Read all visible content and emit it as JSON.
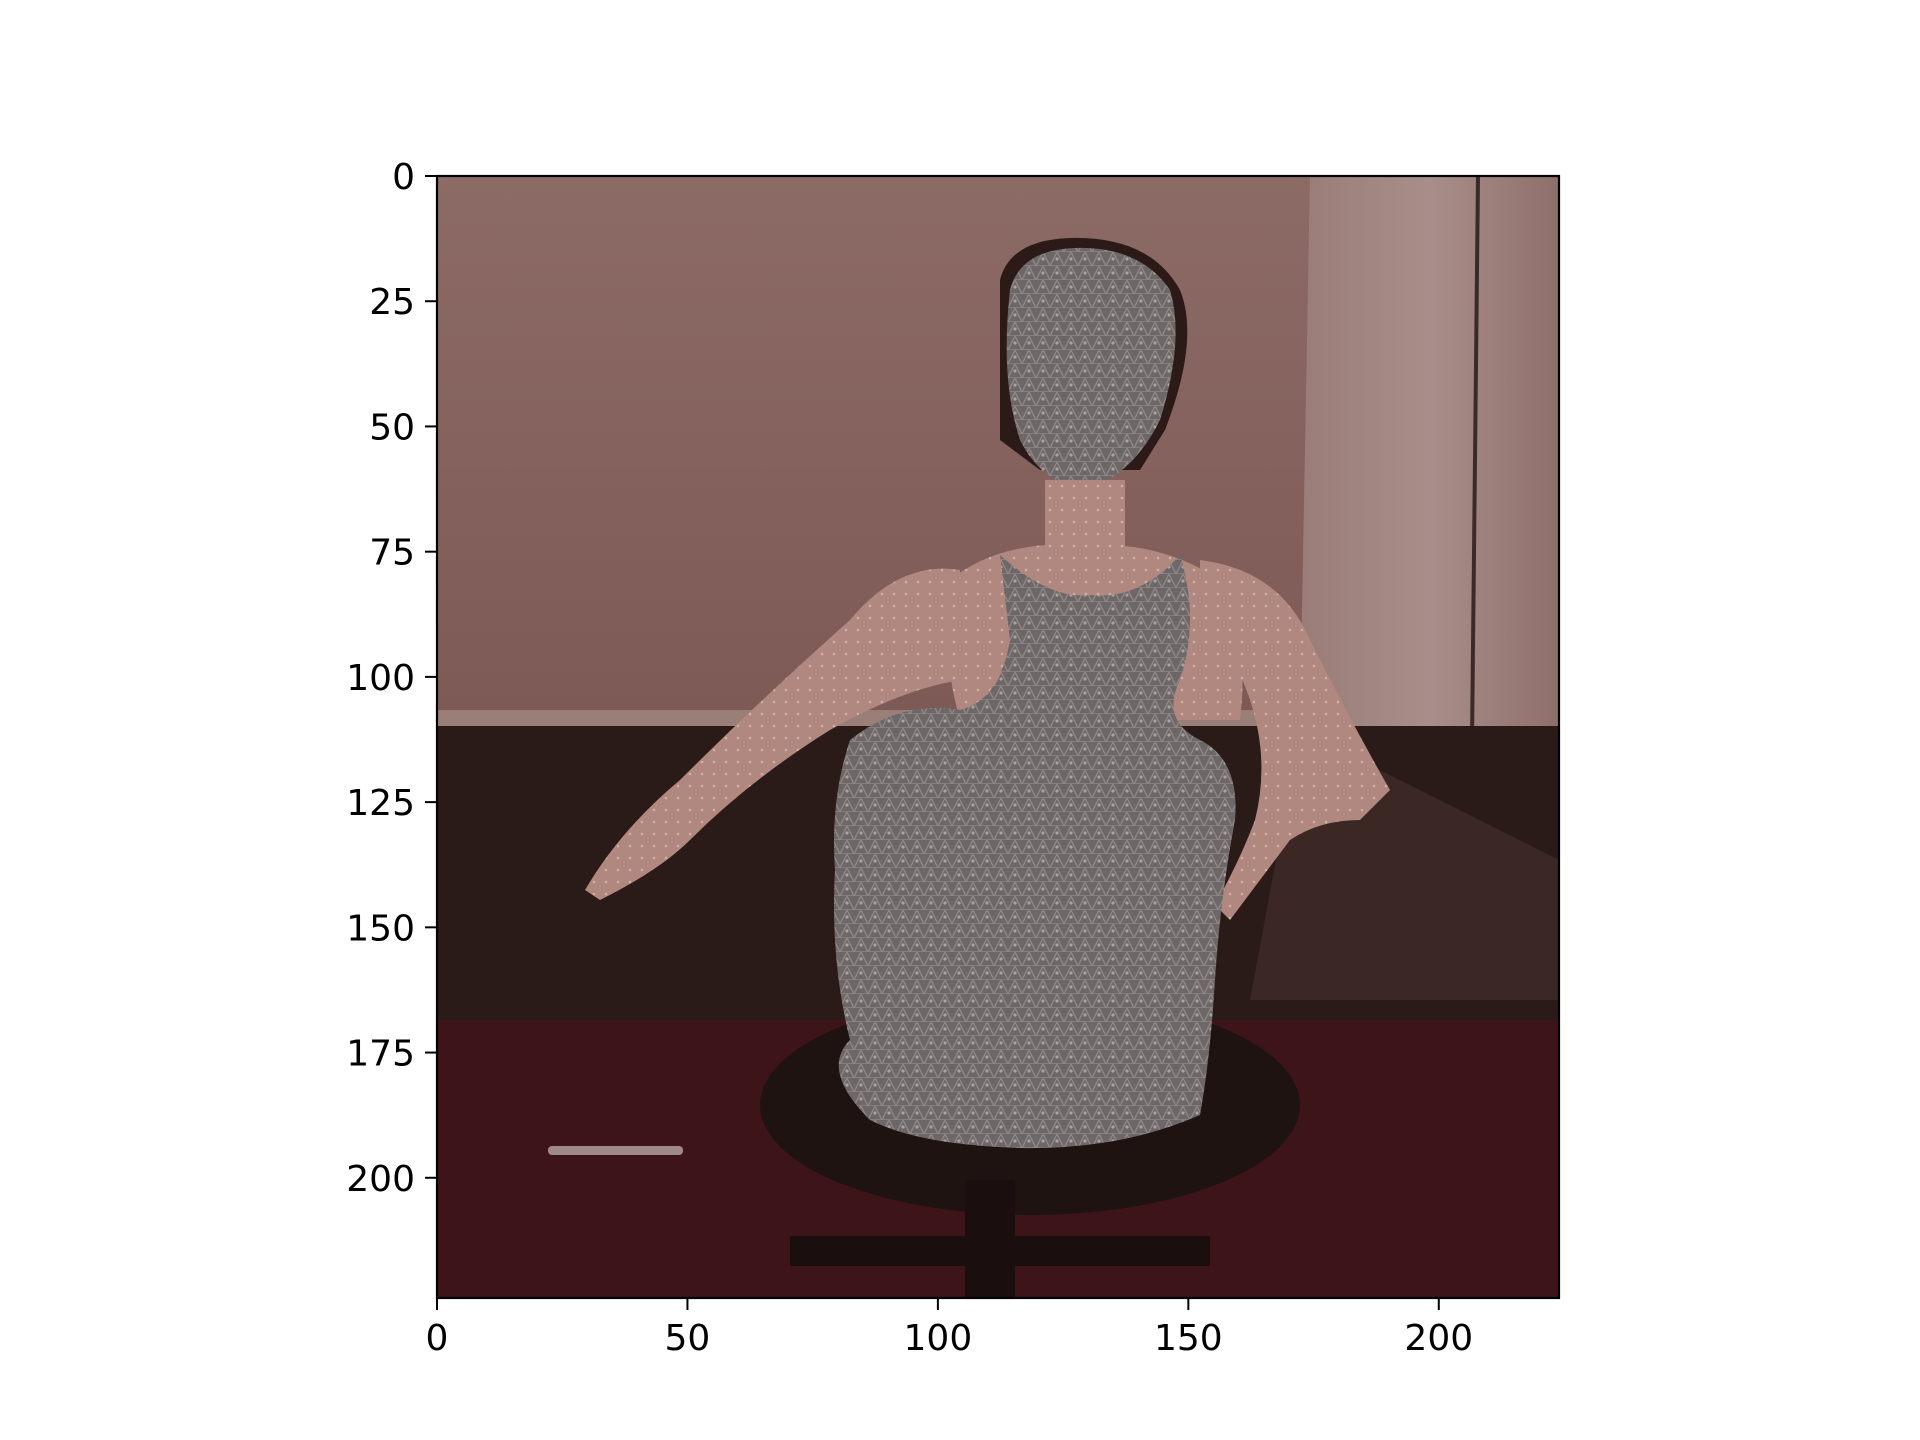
{
  "chart_data": {
    "type": "image",
    "title": "",
    "xlabel": "",
    "ylabel": "",
    "image_extent": {
      "x": [
        0,
        224
      ],
      "y": [
        224,
        0
      ]
    },
    "xlim": [
      0,
      224
    ],
    "ylim": [
      224,
      0
    ],
    "x_ticks": [
      {
        "value": 0,
        "label": "0"
      },
      {
        "value": 50,
        "label": "50"
      },
      {
        "value": 100,
        "label": "100"
      },
      {
        "value": 150,
        "label": "150"
      },
      {
        "value": 200,
        "label": "200"
      }
    ],
    "y_ticks": [
      {
        "value": 0,
        "label": "0"
      },
      {
        "value": 25,
        "label": "25"
      },
      {
        "value": 50,
        "label": "50"
      },
      {
        "value": 75,
        "label": "75"
      },
      {
        "value": 100,
        "label": "100"
      },
      {
        "value": 125,
        "label": "125"
      },
      {
        "value": 150,
        "label": "150"
      },
      {
        "value": 175,
        "label": "175"
      },
      {
        "value": 200,
        "label": "200"
      }
    ],
    "grid": false
  },
  "colors": {
    "wall": "#8a6660",
    "floor": "#3a1416",
    "mesh": "#6f6868",
    "skin": "#b48a80"
  }
}
